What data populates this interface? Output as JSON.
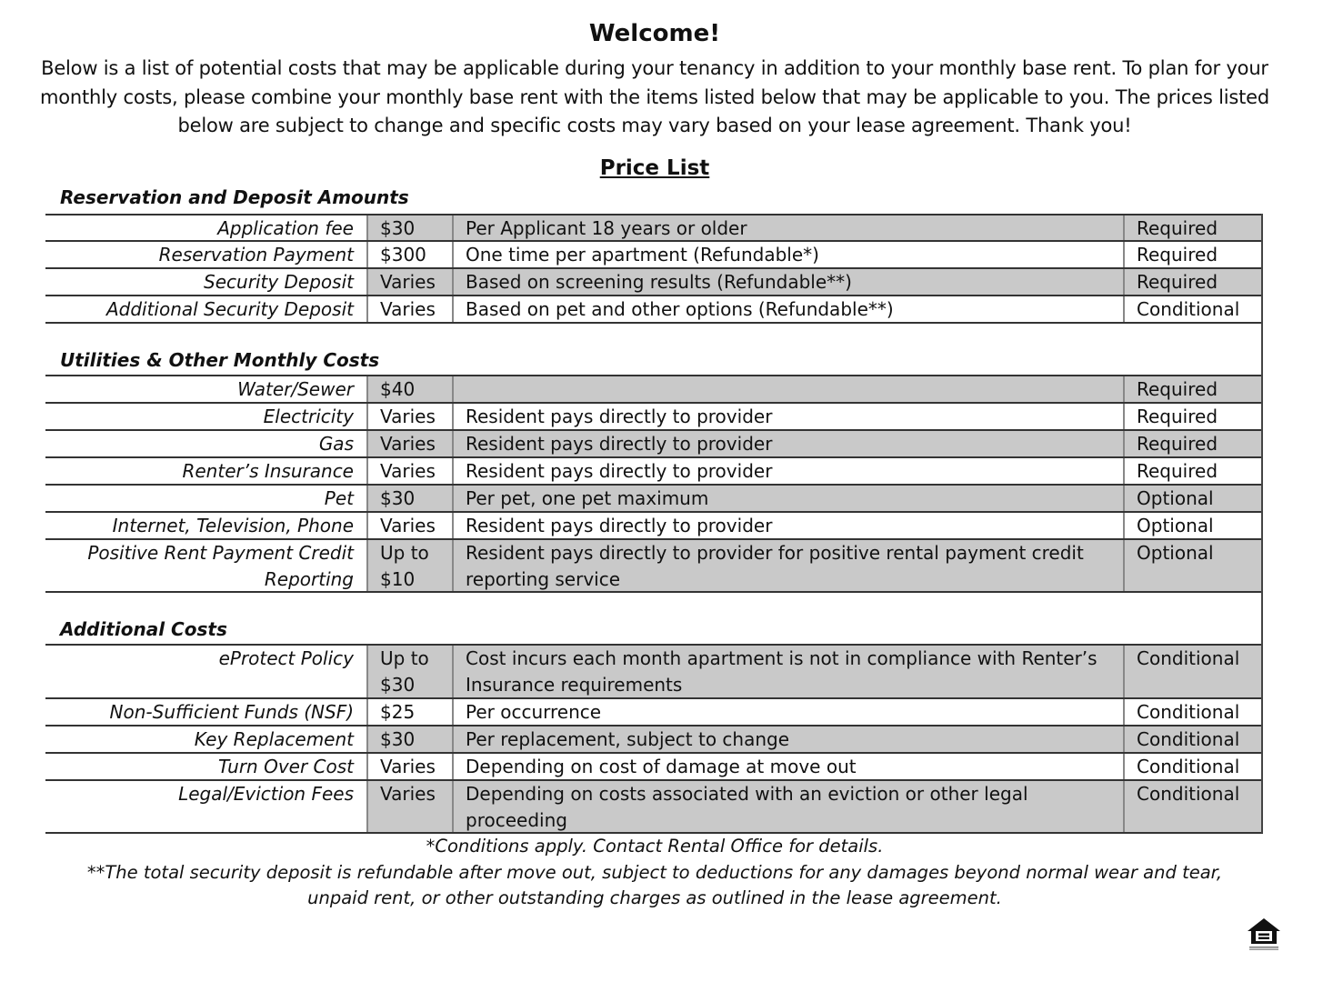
{
  "title": "Welcome!",
  "intro": "Below is a list of potential costs that may be applicable during your tenancy in addition to your monthly base rent. To plan for your monthly costs, please combine your monthly base rent with the items listed below that may be applicable to you. The prices listed below are subject to change and specific costs may vary based on your lease agreement. Thank you!",
  "price_list_heading": "Price List",
  "sections": [
    {
      "title": "Reservation and Deposit Amounts",
      "rows": [
        {
          "item": "Application fee",
          "price": "$30",
          "description": "Per Applicant 18 years or older",
          "status": "Required"
        },
        {
          "item": "Reservation Payment",
          "price": "$300",
          "description": "One time per apartment (Refundable*)",
          "status": "Required"
        },
        {
          "item": "Security Deposit",
          "price": "Varies",
          "description": "Based on screening results (Refundable**)",
          "status": "Required"
        },
        {
          "item": "Additional Security Deposit",
          "price": "Varies",
          "description": "Based on pet and other options (Refundable**)",
          "status": "Conditional"
        }
      ]
    },
    {
      "title": "Utilities & Other Monthly Costs",
      "rows": [
        {
          "item": "Water/Sewer",
          "price": "$40",
          "description": "",
          "status": "Required"
        },
        {
          "item": "Electricity",
          "price": "Varies",
          "description": "Resident pays directly to provider",
          "status": "Required"
        },
        {
          "item": "Gas",
          "price": "Varies",
          "description": "Resident pays directly to provider",
          "status": "Required"
        },
        {
          "item": "Renter’s Insurance",
          "price": "Varies",
          "description": "Resident pays directly to provider",
          "status": "Required"
        },
        {
          "item": "Pet",
          "price": "$30",
          "description": "Per pet, one pet maximum",
          "status": "Optional"
        },
        {
          "item": "Internet, Television, Phone",
          "price": "Varies",
          "description": "Resident pays directly to provider",
          "status": "Optional"
        },
        {
          "item": "Positive Rent Payment Credit Reporting",
          "price": "Up to $10",
          "description": "Resident pays directly to provider for positive rental payment credit reporting service",
          "status": "Optional"
        }
      ]
    },
    {
      "title": "Additional Costs",
      "rows": [
        {
          "item": "eProtect Policy",
          "price": "Up to $30",
          "description": "Cost incurs each month apartment is not in compliance with Renter’s Insurance requirements",
          "status": "Conditional"
        },
        {
          "item": "Non-Sufficient Funds (NSF)",
          "price": "$25",
          "description": "Per occurrence",
          "status": "Conditional"
        },
        {
          "item": "Key Replacement",
          "price": "$30",
          "description": "Per replacement, subject to change",
          "status": "Conditional"
        },
        {
          "item": "Turn Over Cost",
          "price": "Varies",
          "description": "Depending on cost of damage at move out",
          "status": "Conditional"
        },
        {
          "item": "Legal/Eviction Fees",
          "price": "Varies",
          "description": "Depending on costs associated with an eviction or other legal proceeding",
          "status": "Conditional"
        }
      ]
    }
  ],
  "footnote1": "*Conditions apply. Contact Rental Office for details.",
  "footnote2": "**The total security deposit is refundable after move out, subject to deductions for any damages beyond normal wear and tear, unpaid rent, or other outstanding charges as outlined in the lease agreement.",
  "logo": {
    "icon": "equal-housing-opportunity-logo",
    "text": "EQUAL HOUSING OPPORTUNITY"
  },
  "colors": {
    "row_shade": "#c9c9c9"
  }
}
